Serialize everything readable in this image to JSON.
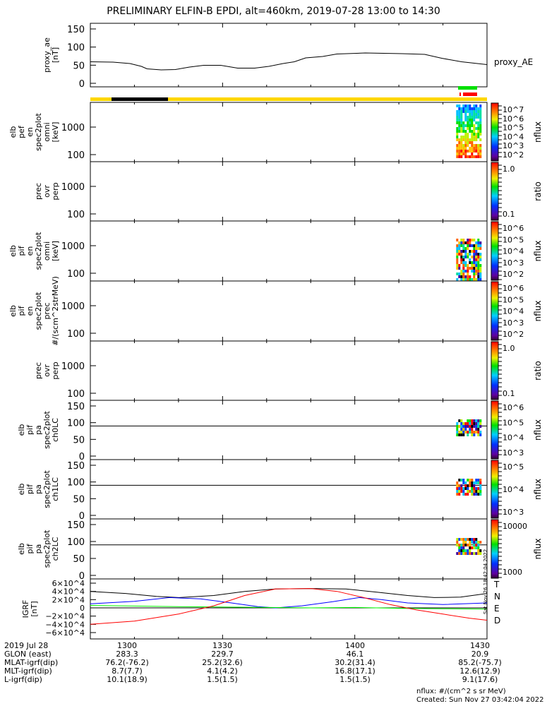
{
  "title": "PRELIMINARY ELFIN-B EPDI, alt=460km, 2019-07-28 13:00 to 14:30",
  "chart_data": {
    "type": "line",
    "time_range_minutes": [
      0,
      90
    ],
    "x_tick_labels": [
      "1300",
      "1330",
      "1400",
      "1430"
    ],
    "x_tick_minutes": [
      0,
      30,
      60,
      90
    ],
    "panels": [
      {
        "id": "proxy_ae",
        "ylabel": [
          "proxy_ae",
          "[nT]"
        ],
        "yticks": [
          "150",
          "100",
          "50",
          "0"
        ],
        "ylim": [
          0,
          150
        ],
        "legend": "proxy_AE",
        "series": [
          {
            "name": "proxy_AE",
            "color": "#000000",
            "points": [
              [
                0,
                55
              ],
              [
                8,
                54
              ],
              [
                14,
                50
              ],
              [
                18,
                42
              ],
              [
                20,
                35
              ],
              [
                25,
                32
              ],
              [
                30,
                33
              ],
              [
                35,
                40
              ],
              [
                40,
                45
              ],
              [
                46,
                45
              ],
              [
                52,
                37
              ],
              [
                58,
                37
              ],
              [
                63,
                42
              ],
              [
                68,
                50
              ],
              [
                72,
                55
              ],
              [
                76,
                66
              ],
              [
                82,
                70
              ],
              [
                87,
                77
              ],
              [
                97,
                80
              ],
              [
                110,
                78
              ],
              [
                118,
                76
              ],
              [
                124,
                65
              ],
              [
                131,
                55
              ],
              [
                140,
                47
              ]
            ]
          }
        ]
      },
      {
        "id": "pef_en",
        "ylabel": [
          "elb",
          "pef",
          "en",
          "spec2plot",
          "omni",
          "[keV]"
        ],
        "yticks": [
          "1000",
          "100"
        ],
        "cbar_ticks": [
          "10^7",
          "10^6",
          "10^5",
          "10^4",
          "10^3",
          "10^2"
        ],
        "cbar_label": "nflux"
      },
      {
        "id": "pef_ratio",
        "ylabel": [
          "prec",
          "ovr",
          "perp"
        ],
        "yticks": [
          "1000",
          "100"
        ],
        "cbar_ticks": [
          "1.0",
          "0.1"
        ],
        "cbar_label": "ratio"
      },
      {
        "id": "pif_en",
        "ylabel": [
          "elb",
          "pif",
          "en",
          "spec2plot",
          "omni",
          "[keV]"
        ],
        "yticks": [
          "1000",
          "100"
        ],
        "cbar_ticks": [
          "10^6",
          "10^5",
          "10^4",
          "10^3",
          "10^2"
        ],
        "cbar_label": "nflux"
      },
      {
        "id": "pif_prec",
        "ylabel": [
          "elb",
          "pif",
          "en",
          "spec2plot",
          "prec",
          "#/(scm^2strMeV)"
        ],
        "yticks": [
          "1000",
          "100"
        ],
        "cbar_ticks": [
          "10^6",
          "10^5",
          "10^4",
          "10^3",
          "10^2"
        ],
        "cbar_label": "nflux"
      },
      {
        "id": "pif_ratio",
        "ylabel": [
          "prec",
          "ovr",
          "perp"
        ],
        "yticks": [
          "1000",
          "100"
        ],
        "cbar_ticks": [
          "1.0",
          "0.1"
        ],
        "cbar_label": "ratio"
      },
      {
        "id": "pa_ch0",
        "ylabel": [
          "elb",
          "pif",
          "pa",
          "spec2plot",
          "ch0LC"
        ],
        "yticks": [
          "150",
          "100",
          "50",
          "0"
        ],
        "cbar_ticks": [
          "10^6",
          "10^5",
          "10^4",
          "10^3"
        ],
        "cbar_label": "nflux"
      },
      {
        "id": "pa_ch1",
        "ylabel": [
          "elb",
          "pif",
          "pa",
          "spec2plot",
          "ch1LC"
        ],
        "yticks": [
          "150",
          "100",
          "50",
          "0"
        ],
        "cbar_ticks": [
          "10^5",
          "10^4",
          "10^3"
        ],
        "cbar_label": "nflux"
      },
      {
        "id": "pa_ch2",
        "ylabel": [
          "elb",
          "pif",
          "pa",
          "spec2plot",
          "ch2LC"
        ],
        "yticks": [
          "150",
          "100",
          "50",
          "0"
        ],
        "cbar_ticks": [
          "10000",
          "1000"
        ],
        "cbar_label": "nflux"
      },
      {
        "id": "igrf",
        "ylabel": [
          "IGRF",
          "[nT]"
        ],
        "yticks": [
          "6×10^4",
          "4×10^4",
          "2×10^4",
          "0",
          "−2×10^4",
          "−4×10^4",
          "−6×10^4"
        ],
        "ylim": [
          -65000,
          65000
        ],
        "legend": [
          "T",
          "N",
          "E",
          "D"
        ],
        "series": [
          {
            "name": "T",
            "color": "#000000",
            "points": [
              [
                0,
                40000
              ],
              [
                8,
                35000
              ],
              [
                15,
                28000
              ],
              [
                20,
                25000
              ],
              [
                28,
                30000
              ],
              [
                35,
                40000
              ],
              [
                42,
                46000
              ],
              [
                50,
                47000
              ],
              [
                58,
                46000
              ],
              [
                65,
                38000
              ],
              [
                72,
                30000
              ],
              [
                78,
                25000
              ],
              [
                84,
                26000
              ],
              [
                90,
                35000
              ]
            ]
          },
          {
            "name": "N",
            "color": "#0000ff",
            "points": [
              [
                0,
                10000
              ],
              [
                10,
                16000
              ],
              [
                18,
                25000
              ],
              [
                25,
                22000
              ],
              [
                32,
                12000
              ],
              [
                38,
                3000
              ],
              [
                42,
                0
              ],
              [
                48,
                5000
              ],
              [
                55,
                15000
              ],
              [
                61,
                25000
              ],
              [
                66,
                20000
              ],
              [
                72,
                12000
              ],
              [
                80,
                8000
              ],
              [
                90,
                12000
              ]
            ]
          },
          {
            "name": "E",
            "color": "#00ff00",
            "points": [
              [
                0,
                6000
              ],
              [
                20,
                3000
              ],
              [
                40,
                1000
              ],
              [
                50,
                0
              ],
              [
                60,
                1000
              ],
              [
                70,
                -1000
              ],
              [
                80,
                -2000
              ],
              [
                90,
                -3000
              ]
            ]
          },
          {
            "name": "D",
            "color": "#ff0000",
            "points": [
              [
                0,
                -40000
              ],
              [
                10,
                -32000
              ],
              [
                20,
                -15000
              ],
              [
                28,
                5000
              ],
              [
                35,
                30000
              ],
              [
                42,
                46000
              ],
              [
                50,
                47000
              ],
              [
                56,
                40000
              ],
              [
                62,
                25000
              ],
              [
                68,
                8000
              ],
              [
                74,
                -5000
              ],
              [
                80,
                -15000
              ],
              [
                86,
                -25000
              ],
              [
                90,
                -30000
              ]
            ]
          }
        ]
      }
    ],
    "data_coverage_minutes": [
      83,
      88
    ]
  },
  "bars": {
    "sci_zone_color": "#ffd700",
    "eclipse_color": "#000000",
    "green": "#00e000",
    "red": "#ff0000"
  },
  "ephemeris": {
    "rows": [
      {
        "label": "2019 Jul 28",
        "values": [
          "1300",
          "1330",
          "1400",
          "1430"
        ]
      },
      {
        "label": "GLON (east)",
        "values": [
          "283.3",
          "229.7",
          "46.1",
          "20.9"
        ]
      },
      {
        "label": "MLAT-igrf(dip)",
        "values": [
          "76.2(-76.2)",
          "25.2(32.6)",
          "30.2(31.4)",
          "85.2(-75.7)"
        ]
      },
      {
        "label": "MLT-igrf(dip)",
        "values": [
          "8.7(7.7)",
          "4.1(4.2)",
          "16.8(17.1)",
          "12.6(12.9)"
        ]
      },
      {
        "label": "L-igrf(dip)",
        "values": [
          "10.1(18.9)",
          "1.5(1.5)",
          "1.5(1.5)",
          "9.1(17.6)"
        ]
      }
    ]
  },
  "footer": {
    "units": "nflux: #/(cm^2 s sr MeV)",
    "created": "Created: Sun Nov 27 03:42:04 2022",
    "side_stamp": "Sat Nov 26 18:42:04 2022"
  }
}
